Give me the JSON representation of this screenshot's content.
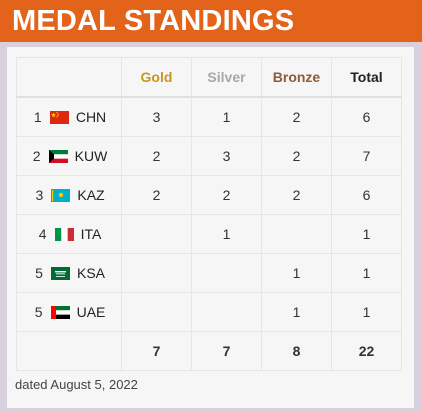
{
  "header": {
    "title": "MEDAL STANDINGS"
  },
  "columns": {
    "gold": "Gold",
    "silver": "Silver",
    "bronze": "Bronze",
    "total": "Total"
  },
  "rows": [
    {
      "rank": "1",
      "code": "CHN",
      "flag": "china-flag-icon",
      "gold": "3",
      "silver": "1",
      "bronze": "2",
      "total": "6"
    },
    {
      "rank": "2",
      "code": "KUW",
      "flag": "kuwait-flag-icon",
      "gold": "2",
      "silver": "3",
      "bronze": "2",
      "total": "7"
    },
    {
      "rank": "3",
      "code": "KAZ",
      "flag": "kazakhstan-flag-icon",
      "gold": "2",
      "silver": "2",
      "bronze": "2",
      "total": "6"
    },
    {
      "rank": "4",
      "code": "ITA",
      "flag": "italy-flag-icon",
      "gold": "",
      "silver": "1",
      "bronze": "",
      "total": "1"
    },
    {
      "rank": "5",
      "code": "KSA",
      "flag": "saudi-arabia-flag-icon",
      "gold": "",
      "silver": "",
      "bronze": "1",
      "total": "1"
    },
    {
      "rank": "5",
      "code": "UAE",
      "flag": "uae-flag-icon",
      "gold": "",
      "silver": "",
      "bronze": "1",
      "total": "1"
    }
  ],
  "totals": {
    "gold": "7",
    "silver": "7",
    "bronze": "8",
    "total": "22"
  },
  "footer": {
    "dated": "dated August 5, 2022"
  },
  "colors": {
    "header": "#e4631a",
    "gold": "#c8961f",
    "silver": "#a8a8a8",
    "bronze": "#8e5a3a"
  }
}
